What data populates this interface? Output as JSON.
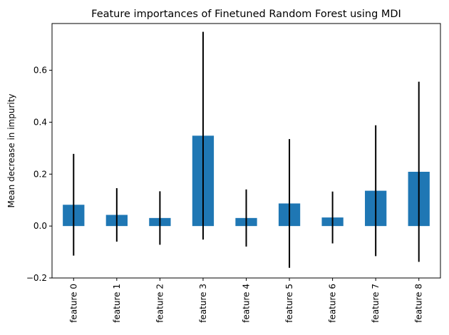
{
  "chart_data": {
    "type": "bar",
    "title": "Feature importances of Finetuned Random Forest using MDI",
    "xlabel": "",
    "ylabel": "Mean decrease in impurity",
    "categories": [
      "feature 0",
      "feature 1",
      "feature 2",
      "feature 3",
      "feature 4",
      "feature 5",
      "feature 6",
      "feature 7",
      "feature 8"
    ],
    "values": [
      0.082,
      0.043,
      0.031,
      0.348,
      0.031,
      0.087,
      0.033,
      0.136,
      0.209
    ],
    "errors": [
      0.196,
      0.103,
      0.103,
      0.4,
      0.11,
      0.248,
      0.1,
      0.252,
      0.347
    ],
    "ylim": [
      -0.2,
      0.78
    ],
    "yticks": [
      -0.2,
      0.0,
      0.2,
      0.4,
      0.6
    ],
    "ytick_labels": [
      "−0.2",
      "0.0",
      "0.2",
      "0.4",
      "0.6"
    ],
    "bar_color": "#1f77b4",
    "error_color": "#000000",
    "grid": false,
    "legend": "none"
  }
}
